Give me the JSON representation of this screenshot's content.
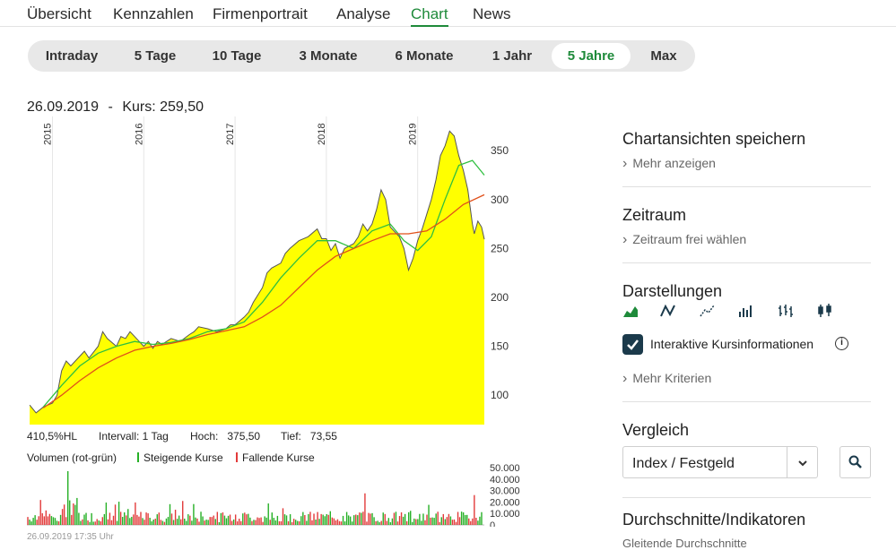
{
  "nav": {
    "tabs": [
      "Übersicht",
      "Kennzahlen",
      "Firmenportrait",
      "Analyse",
      "Chart",
      "News"
    ],
    "active": 4
  },
  "range": {
    "buttons": [
      "Intraday",
      "5 Tage",
      "10 Tage",
      "3 Monate",
      "6 Monate",
      "1 Jahr",
      "5 Jahre",
      "Max"
    ],
    "active": 6
  },
  "chart_header": {
    "date": "26.09.2019",
    "sep": "-",
    "price_label": "Kurs: 259,50"
  },
  "colors": {
    "accent": "#1e8a3a",
    "area_fill": "#ffff00",
    "price_line": "#555555",
    "ma_short": "#2fbf3f",
    "ma_long": "#e0501a",
    "vol_up": "#26b026",
    "vol_down": "#e23a3a"
  },
  "chart_data": {
    "type": "area",
    "x_labels": [
      "2015",
      "2016",
      "2017",
      "2018",
      "2019"
    ],
    "y_ticks": [
      100,
      150,
      200,
      250,
      300,
      350
    ],
    "ylim": [
      70,
      385
    ],
    "series": [
      {
        "values": [
          [
            2014.75,
            90
          ],
          [
            2014.82,
            82
          ],
          [
            2014.9,
            88
          ],
          [
            2015.0,
            92
          ],
          [
            2015.05,
            100
          ],
          [
            2015.1,
            125
          ],
          [
            2015.15,
            135
          ],
          [
            2015.2,
            130
          ],
          [
            2015.3,
            140
          ],
          [
            2015.35,
            145
          ],
          [
            2015.4,
            138
          ],
          [
            2015.5,
            150
          ],
          [
            2015.55,
            165
          ],
          [
            2015.6,
            158
          ],
          [
            2015.7,
            150
          ],
          [
            2015.75,
            160
          ],
          [
            2015.8,
            158
          ],
          [
            2015.85,
            165
          ],
          [
            2015.9,
            160
          ],
          [
            2015.95,
            155
          ],
          [
            2016.0,
            150
          ],
          [
            2016.05,
            155
          ],
          [
            2016.1,
            148
          ],
          [
            2016.15,
            155
          ],
          [
            2016.2,
            152
          ],
          [
            2016.3,
            158
          ],
          [
            2016.4,
            155
          ],
          [
            2016.5,
            162
          ],
          [
            2016.55,
            165
          ],
          [
            2016.6,
            170
          ],
          [
            2016.7,
            168
          ],
          [
            2016.8,
            165
          ],
          [
            2016.9,
            168
          ],
          [
            2016.95,
            172
          ],
          [
            2017.0,
            172
          ],
          [
            2017.1,
            180
          ],
          [
            2017.15,
            185
          ],
          [
            2017.2,
            195
          ],
          [
            2017.3,
            210
          ],
          [
            2017.35,
            225
          ],
          [
            2017.4,
            230
          ],
          [
            2017.5,
            235
          ],
          [
            2017.55,
            245
          ],
          [
            2017.6,
            250
          ],
          [
            2017.7,
            258
          ],
          [
            2017.8,
            262
          ],
          [
            2017.9,
            270
          ],
          [
            2017.95,
            260
          ],
          [
            2018.0,
            260
          ],
          [
            2018.05,
            248
          ],
          [
            2018.1,
            255
          ],
          [
            2018.15,
            240
          ],
          [
            2018.2,
            250
          ],
          [
            2018.3,
            255
          ],
          [
            2018.35,
            262
          ],
          [
            2018.4,
            275
          ],
          [
            2018.45,
            268
          ],
          [
            2018.5,
            275
          ],
          [
            2018.55,
            290
          ],
          [
            2018.6,
            310
          ],
          [
            2018.65,
            300
          ],
          [
            2018.7,
            272
          ],
          [
            2018.8,
            262
          ],
          [
            2018.85,
            250
          ],
          [
            2018.9,
            228
          ],
          [
            2018.95,
            240
          ],
          [
            2019.0,
            258
          ],
          [
            2019.05,
            270
          ],
          [
            2019.1,
            285
          ],
          [
            2019.15,
            300
          ],
          [
            2019.2,
            320
          ],
          [
            2019.25,
            345
          ],
          [
            2019.3,
            355
          ],
          [
            2019.35,
            370
          ],
          [
            2019.4,
            365
          ],
          [
            2019.45,
            345
          ],
          [
            2019.5,
            330
          ],
          [
            2019.55,
            310
          ],
          [
            2019.6,
            275
          ],
          [
            2019.62,
            265
          ],
          [
            2019.66,
            278
          ],
          [
            2019.7,
            272
          ],
          [
            2019.73,
            259.5
          ]
        ]
      }
    ],
    "moving_averages": [
      {
        "values": [
          [
            2014.9,
            88
          ],
          [
            2015.1,
            110
          ],
          [
            2015.3,
            130
          ],
          [
            2015.5,
            143
          ],
          [
            2015.7,
            150
          ],
          [
            2015.9,
            155
          ],
          [
            2016.1,
            152
          ],
          [
            2016.3,
            154
          ],
          [
            2016.5,
            158
          ],
          [
            2016.7,
            165
          ],
          [
            2016.9,
            168
          ],
          [
            2017.1,
            175
          ],
          [
            2017.3,
            195
          ],
          [
            2017.5,
            220
          ],
          [
            2017.7,
            240
          ],
          [
            2017.9,
            258
          ],
          [
            2018.1,
            258
          ],
          [
            2018.3,
            250
          ],
          [
            2018.5,
            268
          ],
          [
            2018.7,
            275
          ],
          [
            2018.85,
            258
          ],
          [
            2019.0,
            248
          ],
          [
            2019.15,
            262
          ],
          [
            2019.3,
            300
          ],
          [
            2019.45,
            335
          ],
          [
            2019.6,
            340
          ],
          [
            2019.73,
            325
          ]
        ]
      },
      {
        "values": [
          [
            2014.9,
            87
          ],
          [
            2015.1,
            100
          ],
          [
            2015.3,
            115
          ],
          [
            2015.5,
            128
          ],
          [
            2015.7,
            138
          ],
          [
            2015.9,
            146
          ],
          [
            2016.1,
            150
          ],
          [
            2016.3,
            153
          ],
          [
            2016.5,
            157
          ],
          [
            2016.7,
            162
          ],
          [
            2016.9,
            166
          ],
          [
            2017.1,
            170
          ],
          [
            2017.3,
            180
          ],
          [
            2017.5,
            192
          ],
          [
            2017.7,
            210
          ],
          [
            2017.9,
            228
          ],
          [
            2018.1,
            242
          ],
          [
            2018.3,
            250
          ],
          [
            2018.5,
            258
          ],
          [
            2018.7,
            265
          ],
          [
            2018.9,
            265
          ],
          [
            2019.1,
            268
          ],
          [
            2019.3,
            280
          ],
          [
            2019.5,
            295
          ],
          [
            2019.73,
            305
          ]
        ]
      }
    ]
  },
  "stats": {
    "perf": "410,5%HL",
    "interval": "Intervall: 1 Tag",
    "high": "Hoch:   375,50",
    "low": "Tief:   73,55"
  },
  "volume": {
    "legend_title": "Volumen (rot-grün)",
    "up_label": "Steigende Kurse",
    "down_label": "Fallende Kurse",
    "ticks": [
      "50.000",
      "40.000",
      "30.000",
      "20.000",
      "10.000",
      "0"
    ],
    "timestamp": "26.09.2019 17:35 Uhr"
  },
  "sidebar": {
    "save_views": {
      "title": "Chartansichten speichern",
      "link": "Mehr anzeigen"
    },
    "timeframe": {
      "title": "Zeitraum",
      "link": "Zeitraum frei wählen"
    },
    "display": {
      "title": "Darstellungen",
      "icons": [
        "area-chart-icon",
        "line-chart-icon",
        "dot-line-chart-icon",
        "volume-bars-icon",
        "ohlc-icon",
        "candlestick-icon"
      ],
      "checkbox_label": "Interaktive Kursinformationen",
      "more_link": "Mehr Kriterien"
    },
    "compare": {
      "title": "Vergleich",
      "select_value": "Index / Festgeld"
    },
    "indicators": {
      "title": "Durchschnitte/Indikatoren",
      "sub": "Gleitende Durchschnitte"
    }
  }
}
